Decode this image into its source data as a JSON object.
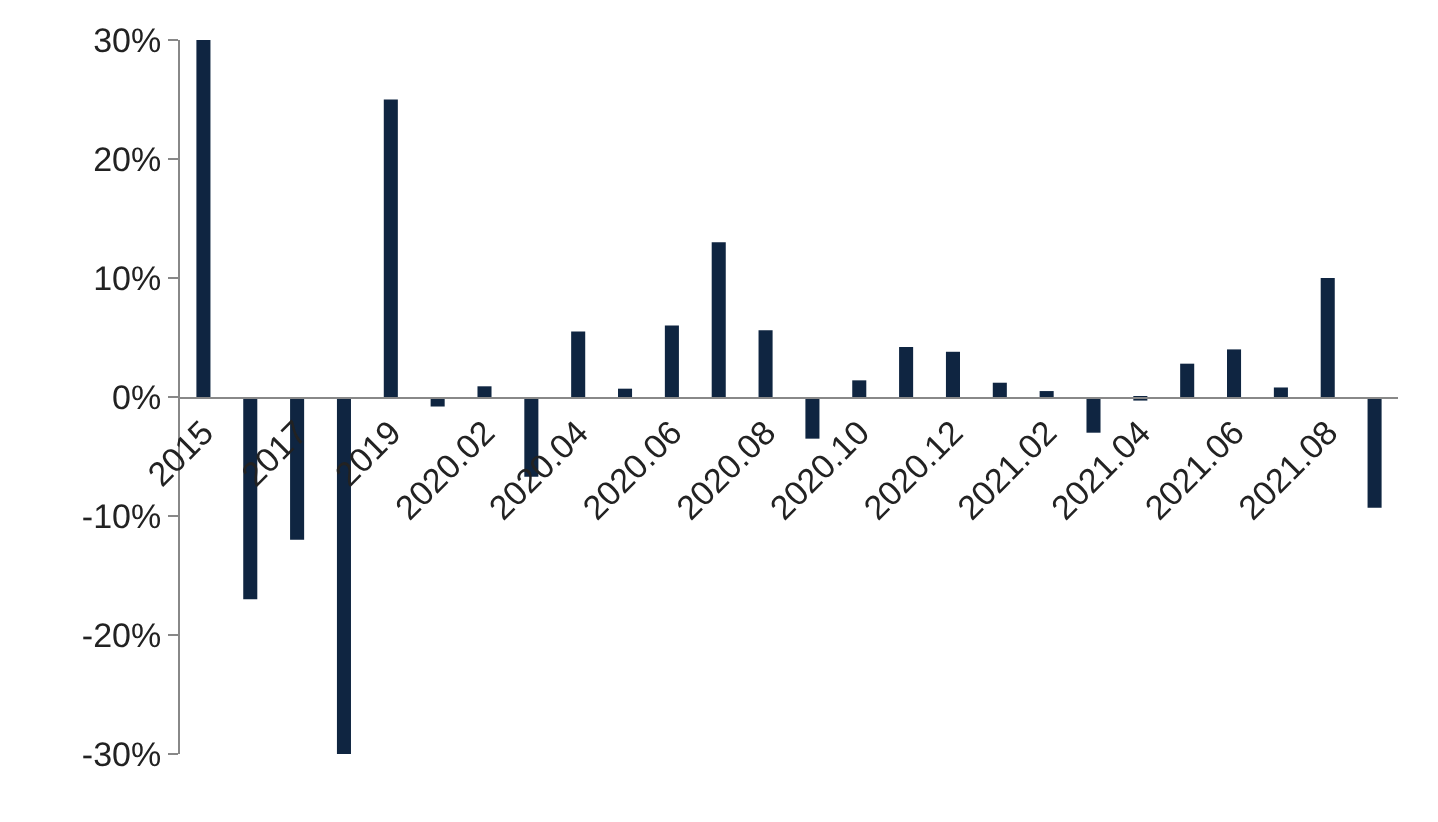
{
  "chart_data": {
    "type": "bar",
    "categories": [
      "2015",
      null,
      "2017",
      null,
      "2019",
      null,
      "2020.02",
      null,
      "2020.04",
      null,
      "2020.06",
      null,
      "2020.08",
      null,
      "2020.10",
      null,
      "2020.12",
      null,
      "2021.02",
      null,
      "2021.04",
      null,
      "2021.06",
      null,
      "2021.08",
      null
    ],
    "series": [
      {
        "color": "#0f2541",
        "values": [
          30,
          -17,
          -12,
          -30,
          25,
          -0.8,
          0.9,
          -6.7,
          5.5,
          0.7,
          6,
          13,
          5.6,
          -3.5,
          1.4,
          4.2,
          3.8,
          1.2,
          0.5,
          -3,
          -0.3,
          2.8,
          4,
          0.8,
          10,
          -9.3
        ]
      }
    ],
    "ylim": [
      -30,
      30
    ],
    "grid": false,
    "yticks": [
      {
        "value": -30,
        "label": "-30%"
      },
      {
        "value": -20,
        "label": "-20%"
      },
      {
        "value": -10,
        "label": "-10%"
      },
      {
        "value": 0,
        "label": "0%"
      },
      {
        "value": 10,
        "label": "10%"
      },
      {
        "value": 20,
        "label": "20%"
      },
      {
        "value": 30,
        "label": "30%"
      }
    ],
    "ylabel": null
  }
}
